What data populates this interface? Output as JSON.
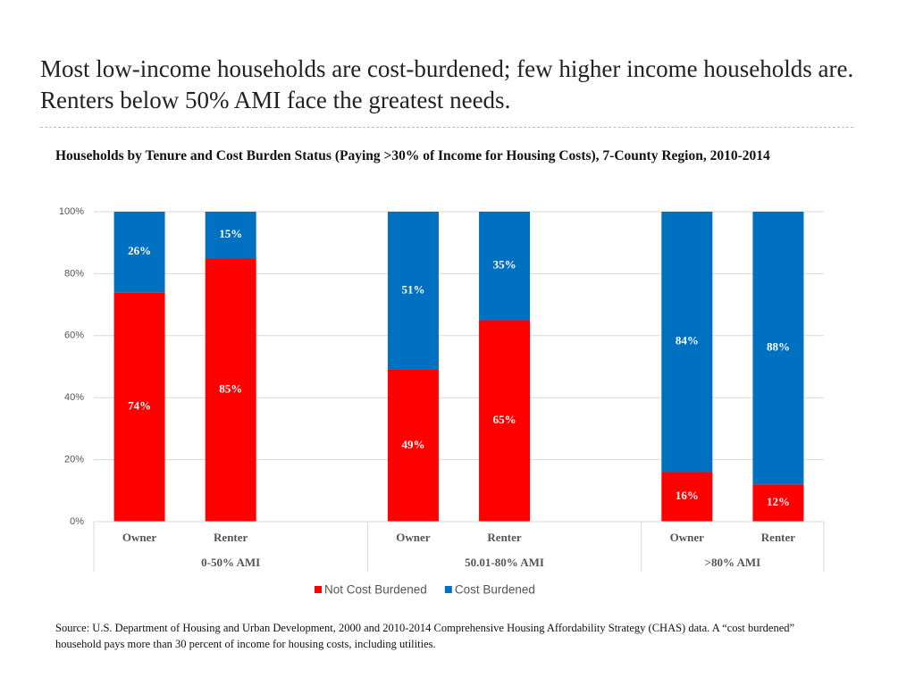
{
  "slide": {
    "title": "Most low-income households are cost-burdened; few higher income households are. Renters below 50% AMI face the greatest needs.",
    "source": "Source: U.S. Department of Housing and Urban Development, 2000 and 2010-2014 Comprehensive Housing Affordability Strategy (CHAS) data. A “cost burdened” household pays more than 30 percent of income for housing costs, including utilities."
  },
  "chart_data": {
    "type": "stacked_bar",
    "title": "Households by Tenure and Cost Burden Status (Paying >30% of Income for Housing Costs), 7-County Region, 2010-2014",
    "categories": [
      "Owner",
      "Renter",
      null,
      "Owner",
      "Renter",
      null,
      "Owner",
      "Renter"
    ],
    "groups": [
      {
        "label": "0-50% AMI",
        "span": 3
      },
      {
        "label": "50.01-80% AMI",
        "span": 3
      },
      {
        "label": ">80% AMI",
        "span": 2
      }
    ],
    "series": [
      {
        "name": "Not Cost Burdened",
        "color": "#ff0000",
        "values": [
          74,
          85,
          null,
          49,
          65,
          null,
          16,
          12
        ],
        "value_labels": [
          "74%",
          "85%",
          null,
          "49%",
          "65%",
          null,
          "16%",
          "12%"
        ]
      },
      {
        "name": "Cost Burdened",
        "color": "#0070c0",
        "values": [
          26,
          15,
          null,
          51,
          35,
          null,
          84,
          88
        ],
        "value_labels": [
          "26%",
          "15%",
          null,
          "51%",
          "35%",
          null,
          "84%",
          "88%"
        ]
      }
    ],
    "ylim": [
      0,
      100
    ],
    "yticks": [
      {
        "value": 0,
        "label": "0%"
      },
      {
        "value": 20,
        "label": "20%"
      },
      {
        "value": 40,
        "label": "40%"
      },
      {
        "value": 60,
        "label": "60%"
      },
      {
        "value": 80,
        "label": "80%"
      },
      {
        "value": 100,
        "label": "100%"
      }
    ],
    "grid": true,
    "legend": "bottom"
  }
}
